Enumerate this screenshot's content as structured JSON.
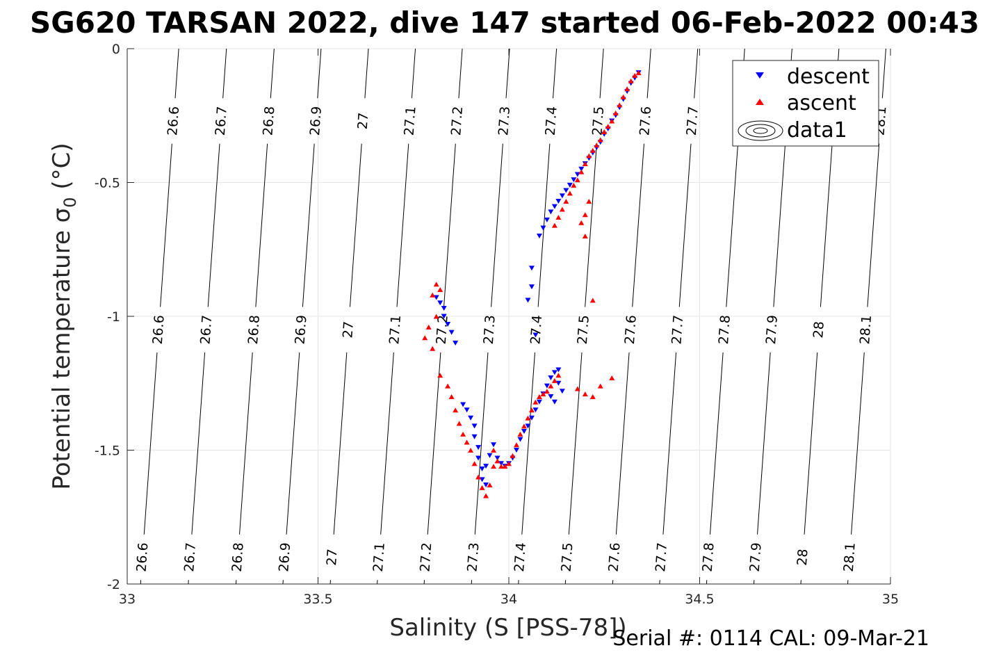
{
  "chart_data": {
    "type": "scatter",
    "title": "SG620 TARSAN 2022, dive 147 started 06-Feb-2022 00:43",
    "xlabel": "Salinity (S [PSS-78])",
    "ylabel": "Potential temperature σ",
    "ylabel_subscript": "0",
    "ylabel_unit": " (°C)",
    "xlim": [
      33,
      35
    ],
    "ylim": [
      -2,
      0
    ],
    "xticks": [
      33,
      33.5,
      34,
      34.5,
      35
    ],
    "xtick_labels": [
      "33",
      "33.5",
      "34",
      "34.5",
      "35"
    ],
    "yticks": [
      0,
      -0.5,
      -1,
      -1.5,
      -2
    ],
    "ytick_labels": [
      "0",
      "-0.5",
      "-1",
      "-1.5",
      "-2"
    ],
    "grid": true,
    "legend": "top-right",
    "legend_entries": [
      "descent",
      "ascent",
      "data1"
    ],
    "footer": "Serial #: 0114  CAL: 09-Mar-21",
    "colors": {
      "descent": "#0000ff",
      "ascent": "#ff0000",
      "contour": "#000000",
      "grid": "#e6e6e6"
    },
    "series": [
      {
        "name": "descent",
        "marker": "triangle-down",
        "points": [
          [
            34.34,
            -0.09
          ],
          [
            34.33,
            -0.11
          ],
          [
            34.32,
            -0.13
          ],
          [
            34.31,
            -0.16
          ],
          [
            34.3,
            -0.19
          ],
          [
            34.29,
            -0.22
          ],
          [
            34.28,
            -0.25
          ],
          [
            34.27,
            -0.27
          ],
          [
            34.26,
            -0.3
          ],
          [
            34.25,
            -0.32
          ],
          [
            34.24,
            -0.35
          ],
          [
            34.23,
            -0.37
          ],
          [
            34.22,
            -0.39
          ],
          [
            34.21,
            -0.41
          ],
          [
            34.2,
            -0.43
          ],
          [
            34.19,
            -0.45
          ],
          [
            34.18,
            -0.47
          ],
          [
            34.17,
            -0.49
          ],
          [
            34.16,
            -0.51
          ],
          [
            34.15,
            -0.53
          ],
          [
            34.14,
            -0.55
          ],
          [
            34.13,
            -0.57
          ],
          [
            34.12,
            -0.59
          ],
          [
            34.11,
            -0.61
          ],
          [
            34.1,
            -0.64
          ],
          [
            34.08,
            -0.7
          ],
          [
            34.09,
            -0.67
          ],
          [
            34.06,
            -0.82
          ],
          [
            34.06,
            -0.89
          ],
          [
            34.05,
            -0.94
          ],
          [
            34.07,
            -1.07
          ],
          [
            33.81,
            -0.93
          ],
          [
            33.82,
            -0.95
          ],
          [
            33.83,
            -0.97
          ],
          [
            33.83,
            -1.0
          ],
          [
            33.84,
            -1.03
          ],
          [
            33.85,
            -1.06
          ],
          [
            33.86,
            -1.1
          ],
          [
            33.88,
            -1.33
          ],
          [
            33.89,
            -1.35
          ],
          [
            33.9,
            -1.38
          ],
          [
            33.91,
            -1.41
          ],
          [
            33.91,
            -1.45
          ],
          [
            33.92,
            -1.49
          ],
          [
            33.92,
            -1.53
          ],
          [
            33.93,
            -1.57
          ],
          [
            33.93,
            -1.61
          ],
          [
            33.94,
            -1.63
          ],
          [
            33.94,
            -1.56
          ],
          [
            33.95,
            -1.52
          ],
          [
            33.96,
            -1.48
          ],
          [
            33.97,
            -1.53
          ],
          [
            33.98,
            -1.55
          ],
          [
            33.99,
            -1.56
          ],
          [
            34.0,
            -1.55
          ],
          [
            34.01,
            -1.53
          ],
          [
            34.02,
            -1.5
          ],
          [
            34.03,
            -1.46
          ],
          [
            34.04,
            -1.43
          ],
          [
            34.05,
            -1.41
          ],
          [
            34.06,
            -1.38
          ],
          [
            34.07,
            -1.35
          ],
          [
            34.08,
            -1.32
          ],
          [
            34.09,
            -1.29
          ],
          [
            34.1,
            -1.26
          ],
          [
            34.11,
            -1.23
          ],
          [
            34.12,
            -1.21
          ],
          [
            34.13,
            -1.2
          ],
          [
            34.13,
            -1.25
          ],
          [
            34.14,
            -1.28
          ],
          [
            34.12,
            -1.32
          ],
          [
            34.11,
            -1.3
          ]
        ]
      },
      {
        "name": "ascent",
        "marker": "triangle-up",
        "points": [
          [
            34.34,
            -0.09
          ],
          [
            34.33,
            -0.1
          ],
          [
            34.32,
            -0.12
          ],
          [
            34.31,
            -0.15
          ],
          [
            34.3,
            -0.18
          ],
          [
            34.29,
            -0.21
          ],
          [
            34.28,
            -0.24
          ],
          [
            34.27,
            -0.27
          ],
          [
            34.26,
            -0.29
          ],
          [
            34.25,
            -0.31
          ],
          [
            34.24,
            -0.34
          ],
          [
            34.23,
            -0.36
          ],
          [
            34.22,
            -0.38
          ],
          [
            34.21,
            -0.4
          ],
          [
            34.2,
            -0.43
          ],
          [
            34.19,
            -0.46
          ],
          [
            34.18,
            -0.49
          ],
          [
            34.17,
            -0.51
          ],
          [
            34.16,
            -0.54
          ],
          [
            34.15,
            -0.57
          ],
          [
            34.14,
            -0.6
          ],
          [
            34.13,
            -0.63
          ],
          [
            34.12,
            -0.66
          ],
          [
            34.21,
            -0.57
          ],
          [
            34.2,
            -0.62
          ],
          [
            34.19,
            -0.65
          ],
          [
            34.2,
            -0.7
          ],
          [
            34.22,
            -0.94
          ],
          [
            33.81,
            -0.88
          ],
          [
            33.82,
            -0.9
          ],
          [
            33.8,
            -0.92
          ],
          [
            33.81,
            -1.0
          ],
          [
            33.79,
            -1.04
          ],
          [
            33.78,
            -1.08
          ],
          [
            33.8,
            -1.12
          ],
          [
            33.82,
            -1.22
          ],
          [
            33.84,
            -1.26
          ],
          [
            33.85,
            -1.3
          ],
          [
            33.86,
            -1.35
          ],
          [
            33.87,
            -1.4
          ],
          [
            33.88,
            -1.44
          ],
          [
            33.89,
            -1.47
          ],
          [
            33.9,
            -1.5
          ],
          [
            33.91,
            -1.55
          ],
          [
            33.92,
            -1.6
          ],
          [
            33.93,
            -1.64
          ],
          [
            33.94,
            -1.67
          ],
          [
            33.95,
            -1.63
          ],
          [
            33.96,
            -1.56
          ],
          [
            33.96,
            -1.5
          ],
          [
            33.97,
            -1.54
          ],
          [
            33.98,
            -1.56
          ],
          [
            33.99,
            -1.56
          ],
          [
            34.0,
            -1.55
          ],
          [
            34.01,
            -1.52
          ],
          [
            34.02,
            -1.48
          ],
          [
            34.03,
            -1.44
          ],
          [
            34.04,
            -1.41
          ],
          [
            34.05,
            -1.38
          ],
          [
            34.06,
            -1.35
          ],
          [
            34.07,
            -1.32
          ],
          [
            34.08,
            -1.3
          ],
          [
            34.09,
            -1.29
          ],
          [
            34.1,
            -1.28
          ],
          [
            34.11,
            -1.26
          ],
          [
            34.12,
            -1.24
          ],
          [
            34.13,
            -1.22
          ],
          [
            34.18,
            -1.27
          ],
          [
            34.2,
            -1.29
          ],
          [
            34.22,
            -1.3
          ],
          [
            34.24,
            -1.26
          ],
          [
            34.27,
            -1.23
          ]
        ]
      }
    ],
    "isopycnals": [
      {
        "label": "26.6",
        "bottom_s": 33.035,
        "top_s": 33.135
      },
      {
        "label": "26.7",
        "bottom_s": 33.16,
        "top_s": 33.26
      },
      {
        "label": "26.8",
        "bottom_s": 33.285,
        "top_s": 33.385
      },
      {
        "label": "26.9",
        "bottom_s": 33.408,
        "top_s": 33.508
      },
      {
        "label": "27",
        "bottom_s": 33.532,
        "top_s": 33.632
      },
      {
        "label": "27.1",
        "bottom_s": 33.655,
        "top_s": 33.755
      },
      {
        "label": "27.2",
        "bottom_s": 33.778,
        "top_s": 33.878
      },
      {
        "label": "27.3",
        "bottom_s": 33.902,
        "top_s": 34.002
      },
      {
        "label": "27.4",
        "bottom_s": 34.025,
        "top_s": 34.125
      },
      {
        "label": "27.5",
        "bottom_s": 34.148,
        "top_s": 34.248
      },
      {
        "label": "27.6",
        "bottom_s": 34.272,
        "top_s": 34.372
      },
      {
        "label": "27.7",
        "bottom_s": 34.395,
        "top_s": 34.495
      },
      {
        "label": "27.8",
        "bottom_s": 34.518,
        "top_s": 34.618
      },
      {
        "label": "27.9",
        "bottom_s": 34.642,
        "top_s": 34.742
      },
      {
        "label": "28",
        "bottom_s": 34.765,
        "top_s": 34.865
      },
      {
        "label": "28.1",
        "bottom_s": 34.888,
        "top_s": 34.988
      }
    ],
    "isopycnal_label_rows": [
      -1.9,
      -1.05,
      -0.27
    ]
  }
}
